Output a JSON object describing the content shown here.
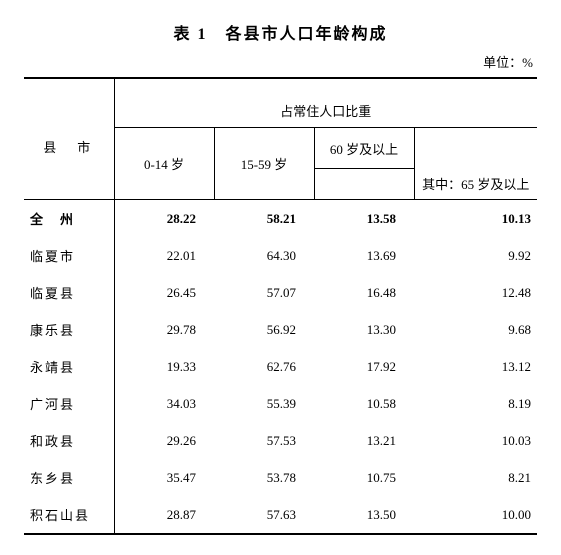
{
  "title": "表 1　各县市人口年龄构成",
  "unit": "单位：%",
  "headers": {
    "county": "县　市",
    "group": "占常住人口比重",
    "col_a": "0-14 岁",
    "col_b": "15-59 岁",
    "col_c": "60 岁及以上",
    "col_d": "其中：65 岁及以上"
  },
  "rows": [
    {
      "name": "全　州",
      "a": "28.22",
      "b": "58.21",
      "c": "13.58",
      "d": "10.13",
      "bold": true
    },
    {
      "name": "临夏市",
      "a": "22.01",
      "b": "64.30",
      "c": "13.69",
      "d": "9.92",
      "bold": false
    },
    {
      "name": "临夏县",
      "a": "26.45",
      "b": "57.07",
      "c": "16.48",
      "d": "12.48",
      "bold": false
    },
    {
      "name": "康乐县",
      "a": "29.78",
      "b": "56.92",
      "c": "13.30",
      "d": "9.68",
      "bold": false
    },
    {
      "name": "永靖县",
      "a": "19.33",
      "b": "62.76",
      "c": "17.92",
      "d": "13.12",
      "bold": false
    },
    {
      "name": "广河县",
      "a": "34.03",
      "b": "55.39",
      "c": "10.58",
      "d": "8.19",
      "bold": false
    },
    {
      "name": "和政县",
      "a": "29.26",
      "b": "57.53",
      "c": "13.21",
      "d": "10.03",
      "bold": false
    },
    {
      "name": "东乡县",
      "a": "35.47",
      "b": "53.78",
      "c": "10.75",
      "d": "8.21",
      "bold": false
    },
    {
      "name": "积石山县",
      "a": "28.87",
      "b": "57.63",
      "c": "13.50",
      "d": "10.00",
      "bold": false
    }
  ],
  "style": {
    "background_color": "#ffffff",
    "text_color": "#000000",
    "border_color": "#000000",
    "title_fontsize": 16,
    "body_fontsize": 13
  }
}
